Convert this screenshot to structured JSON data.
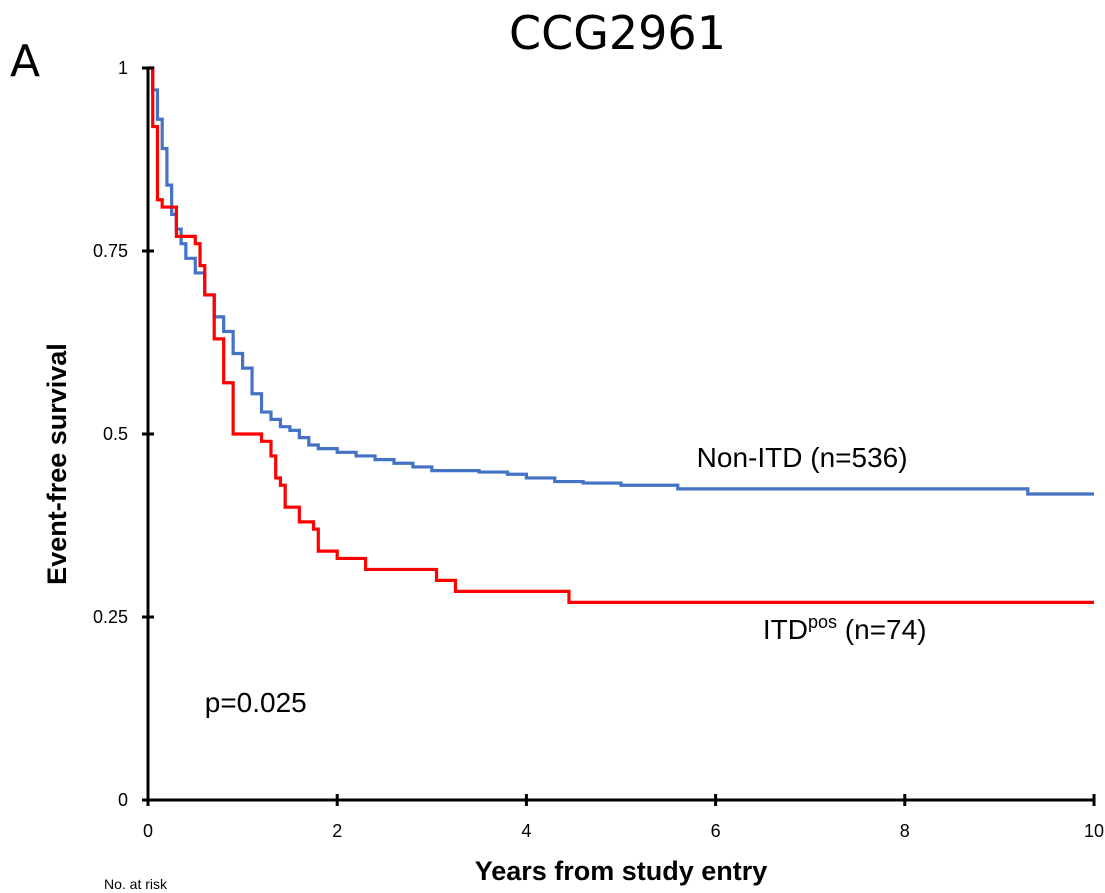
{
  "figure": {
    "panel_label": "A",
    "footnote": "No. at risk"
  },
  "chart_data": {
    "type": "line",
    "title": "CCG2961",
    "xlabel": "Years from study entry",
    "ylabel": "Event-free survival",
    "xlim": [
      0,
      10
    ],
    "ylim": [
      0,
      1
    ],
    "x_ticks": [
      0,
      2,
      4,
      6,
      8,
      10
    ],
    "y_ticks": [
      0,
      0.25,
      0.5,
      0.75,
      1
    ],
    "x_tick_labels": [
      "0",
      "2",
      "4",
      "6",
      "8",
      "10"
    ],
    "y_tick_labels": [
      "0",
      "0.25",
      "0.5",
      "0.75",
      "1"
    ],
    "grid": false,
    "annotations": [
      {
        "text": "p=0.025",
        "x": 0.6,
        "y": 0.12
      }
    ],
    "series": [
      {
        "name": "Non-ITD (n=536)",
        "color": "#4472C4",
        "step": true,
        "label_anchor": {
          "x": 5.8,
          "y": 0.455
        },
        "x": [
          0,
          0.05,
          0.1,
          0.15,
          0.2,
          0.25,
          0.3,
          0.35,
          0.4,
          0.5,
          0.6,
          0.7,
          0.8,
          0.9,
          1.0,
          1.1,
          1.2,
          1.3,
          1.4,
          1.5,
          1.6,
          1.7,
          1.8,
          2.0,
          2.2,
          2.4,
          2.6,
          2.8,
          3.0,
          3.5,
          3.8,
          4.0,
          4.3,
          4.6,
          5.0,
          5.6,
          9.3,
          10.0
        ],
        "values": [
          1.0,
          0.97,
          0.93,
          0.89,
          0.84,
          0.8,
          0.78,
          0.76,
          0.74,
          0.72,
          0.69,
          0.66,
          0.64,
          0.61,
          0.59,
          0.555,
          0.53,
          0.52,
          0.51,
          0.505,
          0.495,
          0.485,
          0.48,
          0.475,
          0.47,
          0.465,
          0.46,
          0.455,
          0.45,
          0.448,
          0.445,
          0.44,
          0.435,
          0.433,
          0.43,
          0.425,
          0.418,
          0.418
        ]
      },
      {
        "name": "ITDpos (n=74)",
        "label_main": "ITD",
        "label_sup": "pos",
        "label_rest": " (n=74)",
        "color": "#FF0000",
        "step": true,
        "label_anchor": {
          "x": 6.5,
          "y": 0.22
        },
        "x": [
          0,
          0.05,
          0.1,
          0.15,
          0.3,
          0.5,
          0.55,
          0.6,
          0.7,
          0.8,
          0.9,
          1.2,
          1.3,
          1.35,
          1.4,
          1.45,
          1.6,
          1.75,
          1.8,
          2.0,
          2.3,
          3.05,
          3.25,
          4.45,
          10.0
        ],
        "values": [
          1.0,
          0.92,
          0.82,
          0.81,
          0.77,
          0.76,
          0.73,
          0.69,
          0.63,
          0.57,
          0.5,
          0.49,
          0.47,
          0.44,
          0.43,
          0.4,
          0.38,
          0.37,
          0.34,
          0.33,
          0.315,
          0.3,
          0.285,
          0.27,
          0.27
        ]
      }
    ]
  }
}
